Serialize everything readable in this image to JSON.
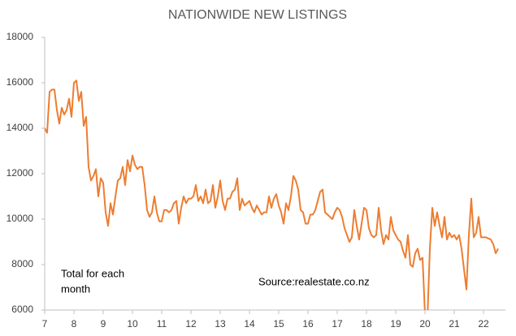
{
  "chart_data": {
    "type": "line",
    "title": "NATIONWIDE NEW LISTINGS",
    "note": [
      "Total for each",
      "month"
    ],
    "source": "Source:realestate.co.nz",
    "color": "#ed7d31",
    "xlim": [
      7,
      22.75
    ],
    "xticks": [
      7,
      8,
      9,
      10,
      11,
      12,
      13,
      14,
      15,
      16,
      17,
      18,
      19,
      20,
      21,
      22
    ],
    "ylim": [
      6000,
      18000
    ],
    "yticks": [
      6000,
      8000,
      10000,
      12000,
      14000,
      16000,
      18000
    ],
    "grid": false,
    "x": [
      7,
      7.083,
      7.167,
      7.25,
      7.333,
      7.417,
      7.5,
      7.583,
      7.667,
      7.75,
      7.833,
      7.917,
      8,
      8.083,
      8.167,
      8.25,
      8.333,
      8.417,
      8.5,
      8.583,
      8.667,
      8.75,
      8.833,
      8.917,
      9,
      9.083,
      9.167,
      9.25,
      9.333,
      9.417,
      9.5,
      9.583,
      9.667,
      9.75,
      9.833,
      9.917,
      10,
      10.083,
      10.167,
      10.25,
      10.333,
      10.417,
      10.5,
      10.583,
      10.667,
      10.75,
      10.833,
      10.917,
      11,
      11.083,
      11.167,
      11.25,
      11.333,
      11.417,
      11.5,
      11.583,
      11.667,
      11.75,
      11.833,
      11.917,
      12,
      12.083,
      12.167,
      12.25,
      12.333,
      12.417,
      12.5,
      12.583,
      12.667,
      12.75,
      12.833,
      12.917,
      13,
      13.083,
      13.167,
      13.25,
      13.333,
      13.417,
      13.5,
      13.583,
      13.667,
      13.75,
      13.833,
      13.917,
      14,
      14.083,
      14.167,
      14.25,
      14.333,
      14.417,
      14.5,
      14.583,
      14.667,
      14.75,
      14.833,
      14.917,
      15,
      15.083,
      15.167,
      15.25,
      15.333,
      15.417,
      15.5,
      15.583,
      15.667,
      15.75,
      15.833,
      15.917,
      16,
      16.083,
      16.167,
      16.25,
      16.333,
      16.417,
      16.5,
      16.583,
      16.667,
      16.75,
      16.833,
      16.917,
      17,
      17.083,
      17.167,
      17.25,
      17.333,
      17.417,
      17.5,
      17.583,
      17.667,
      17.75,
      17.833,
      17.917,
      18,
      18.083,
      18.167,
      18.25,
      18.333,
      18.417,
      18.5,
      18.583,
      18.667,
      18.75,
      18.833,
      18.917,
      19,
      19.083,
      19.167,
      19.25,
      19.333,
      19.417,
      19.5,
      19.583,
      19.667,
      19.75,
      19.833,
      19.917,
      20,
      20.083,
      20.167,
      20.25,
      20.333,
      20.417,
      20.5,
      20.583,
      20.667,
      20.75,
      20.833,
      20.917,
      21,
      21.083,
      21.167,
      21.25,
      21.333,
      21.417,
      21.5,
      21.583,
      21.667,
      21.75,
      21.833,
      21.917,
      22,
      22.083,
      22.167,
      22.25,
      22.333,
      22.417,
      22.5
    ],
    "values": [
      14000,
      13800,
      15600,
      15700,
      15700,
      14800,
      14200,
      14900,
      14600,
      14800,
      15300,
      14500,
      16000,
      16100,
      15200,
      15600,
      14100,
      14500,
      12300,
      11700,
      11900,
      12200,
      11000,
      11800,
      11600,
      10300,
      9700,
      10700,
      10200,
      11000,
      11700,
      11800,
      12300,
      11500,
      12600,
      12100,
      12800,
      12400,
      12200,
      12300,
      12300,
      11500,
      10400,
      10100,
      10300,
      11000,
      10300,
      9900,
      9900,
      10400,
      10400,
      10300,
      10400,
      10700,
      10800,
      9800,
      10500,
      11000,
      10700,
      10900,
      10900,
      11000,
      11500,
      10800,
      11000,
      10700,
      11300,
      10700,
      10800,
      11500,
      10500,
      11000,
      11700,
      10800,
      10400,
      10900,
      10900,
      11200,
      11300,
      11800,
      10400,
      10900,
      10600,
      10700,
      10800,
      10500,
      10300,
      10600,
      10400,
      10200,
      10300,
      10300,
      11000,
      10500,
      10900,
      11100,
      10600,
      10300,
      9800,
      10700,
      10400,
      11000,
      11900,
      11700,
      11300,
      10400,
      10300,
      9800,
      9800,
      10200,
      10200,
      10400,
      10800,
      11200,
      11300,
      10300,
      10200,
      10100,
      10000,
      10300,
      10500,
      10400,
      10100,
      9600,
      9300,
      9000,
      9200,
      10400,
      9700,
      9100,
      9800,
      10500,
      10400,
      9600,
      9300,
      9200,
      9300,
      10500,
      9500,
      8900,
      9300,
      9100,
      10100,
      9500,
      9300,
      9100,
      9000,
      8600,
      8300,
      9300,
      8000,
      7900,
      8500,
      8700,
      8200,
      8300,
      5800,
      5600,
      8700,
      10500,
      9700,
      10300,
      9700,
      9200,
      10100,
      9100,
      9400,
      9200,
      9300,
      9100,
      9300,
      8700,
      7800,
      6900,
      9300,
      10900,
      9200,
      9400,
      10100,
      9200,
      9200,
      9200,
      9150,
      9100,
      8900,
      8500,
      8700
    ]
  }
}
